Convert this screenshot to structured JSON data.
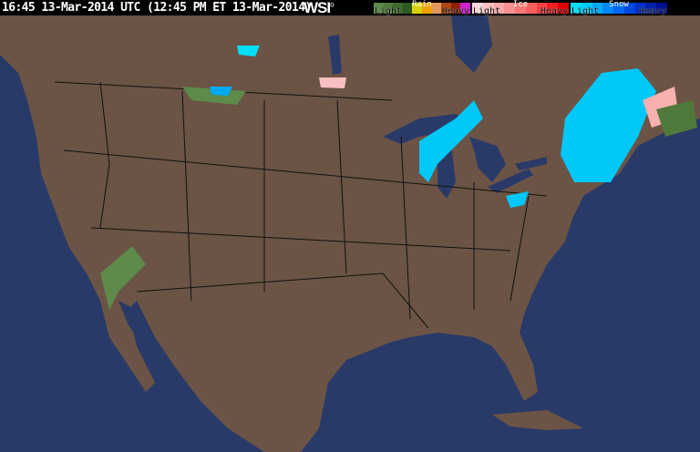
{
  "header": {
    "timestamp": "16:45 13-Mar-2014 UTC (12:45 PM ET 13-Mar-2014)",
    "logo": "WSI"
  },
  "legend": [
    {
      "title": "Rain",
      "light_label": "Light",
      "heavy_label": "Heavy",
      "colors": [
        "#5e8a4a",
        "#4f7a3c",
        "#3c6a2c",
        "#2c5a20",
        "#d8d000",
        "#f0a000",
        "#e09860",
        "#b04810",
        "#902000",
        "#d020d0"
      ]
    },
    {
      "title": "Ice",
      "light_label": "Light",
      "heavy_label": "Heavy",
      "colors": [
        "#f8d8d8",
        "#f8c0c0",
        "#f8a8a8",
        "#f89090",
        "#f87878",
        "#f86060",
        "#f84040",
        "#f02020",
        "#e00000"
      ]
    },
    {
      "title": "Snow",
      "light_label": "Light",
      "heavy_label": "Heavy",
      "colors": [
        "#00e0f8",
        "#00c8f8",
        "#00a8f8",
        "#0088f8",
        "#0068f0",
        "#0048e0",
        "#0030c8",
        "#0020a8",
        "#001090"
      ]
    }
  ],
  "map": {
    "land_color": "#6b5445",
    "water_color": "#2a3a68",
    "border_color": "#111111"
  }
}
